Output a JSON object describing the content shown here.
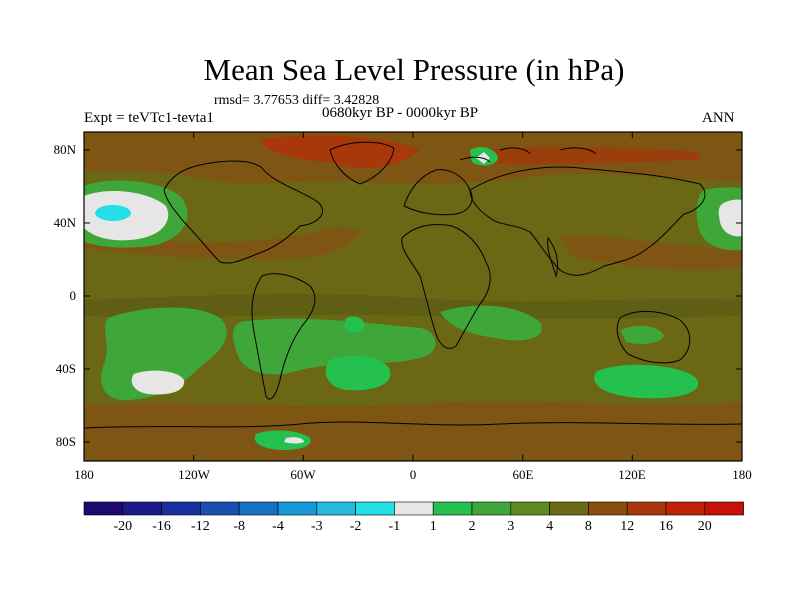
{
  "title": "Mean Sea Level Pressure (in hPa)",
  "stats": "rmsd= 3.77653  diff= 3.42828",
  "experiment": "Expt = teVTc1-tevta1",
  "period": "0680kyr BP - 0000kyr BP",
  "season": "ANN",
  "lat_labels": [
    "80N",
    "40N",
    "0",
    "40S",
    "80S"
  ],
  "lon_labels": [
    "180",
    "120W",
    "60W",
    "0",
    "60E",
    "120E",
    "180"
  ],
  "colorbar": {
    "labels": [
      "-20",
      "-16",
      "-12",
      "-8",
      "-4",
      "-3",
      "-2",
      "-1",
      "1",
      "2",
      "3",
      "4",
      "8",
      "12",
      "16",
      "20"
    ],
    "colors": [
      "#1e0a6e",
      "#1a1a8c",
      "#1a2fa0",
      "#1a4fb0",
      "#1770c0",
      "#1597d8",
      "#27b8e0",
      "#22dfe8",
      "#e6e6e6",
      "#24c14f",
      "#3fa63a",
      "#5e8c22",
      "#6a6a14",
      "#8a4f0f",
      "#a8380b",
      "#c0230a",
      "#c8100a"
    ]
  },
  "map_colors": {
    "background": "#6b6714",
    "dark_olive": "#5e5e14",
    "brown": "#7e5512",
    "green": "#3fa63a",
    "bright_green": "#24c14f",
    "white": "#e6e6e6",
    "cyan": "#22dfe8",
    "red_brown": "#a8380b"
  }
}
